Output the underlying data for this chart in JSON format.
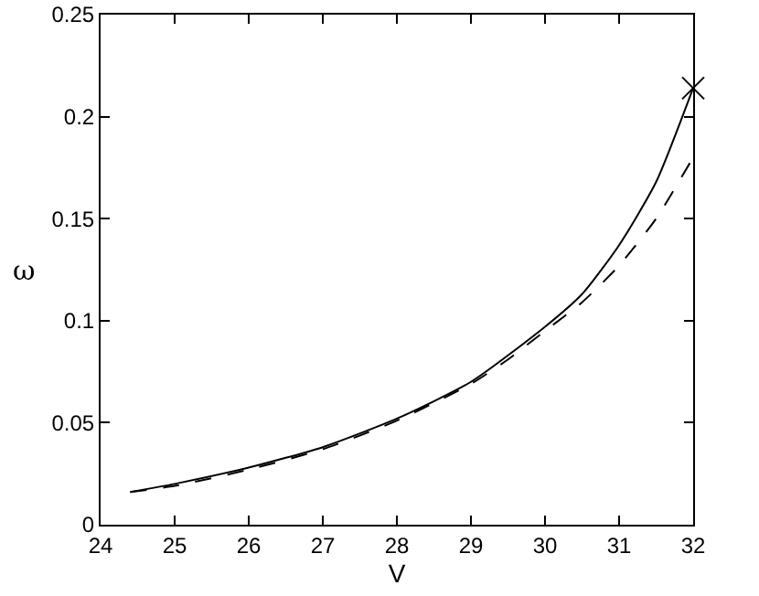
{
  "chart_data": {
    "type": "line",
    "xlabel": "V",
    "ylabel": "ω",
    "xlim": [
      24,
      32
    ],
    "ylim": [
      0,
      0.25
    ],
    "xticks": [
      24,
      25,
      26,
      27,
      28,
      29,
      30,
      31,
      32
    ],
    "yticks": [
      0,
      0.05,
      0.1,
      0.15,
      0.2,
      0.25
    ],
    "grid": false,
    "series": [
      {
        "color": "#000000",
        "line_style": "solid",
        "marker": "none",
        "x": [
          24.4,
          25,
          26,
          27,
          28,
          29,
          30,
          30.5,
          31,
          31.5,
          32
        ],
        "values": [
          0.016,
          0.02,
          0.028,
          0.038,
          0.052,
          0.07,
          0.097,
          0.113,
          0.137,
          0.168,
          0.214
        ]
      },
      {
        "color": "#000000",
        "line_style": "dashed",
        "marker": "none",
        "x": [
          24.4,
          25,
          26,
          27,
          28,
          29,
          29.5,
          30,
          30.5,
          31,
          31.5,
          32
        ],
        "values": [
          0.016,
          0.019,
          0.027,
          0.037,
          0.051,
          0.069,
          0.081,
          0.095,
          0.109,
          0.127,
          0.15,
          0.18
        ]
      },
      {
        "type": "scatter",
        "color": "#000000",
        "marker": "cross",
        "x": [
          32
        ],
        "values": [
          0.214
        ]
      }
    ]
  }
}
